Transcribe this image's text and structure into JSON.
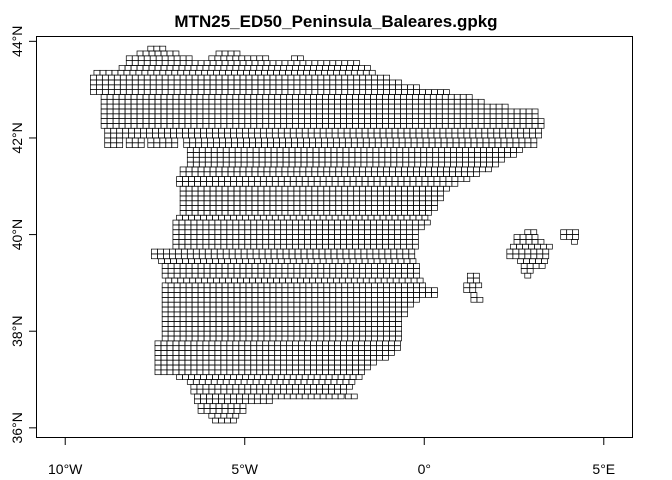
{
  "chart_data": {
    "type": "map-grid",
    "title": "MTN25_ED50_Peninsula_Baleares.gpkg",
    "x_axis": {
      "unit": "longitude",
      "range": [
        -10.8,
        5.8
      ],
      "ticks": [
        {
          "value": -10,
          "label": "10°W"
        },
        {
          "value": -5,
          "label": "5°W"
        },
        {
          "value": 0,
          "label": "0°"
        },
        {
          "value": 5,
          "label": "5°E"
        }
      ]
    },
    "y_axis": {
      "unit": "latitude",
      "range": [
        35.8,
        44.1
      ],
      "ticks": [
        {
          "value": 36,
          "label": "36°N"
        },
        {
          "value": 38,
          "label": "38°N"
        },
        {
          "value": 40,
          "label": "40°N"
        },
        {
          "value": 42,
          "label": "42°N"
        },
        {
          "value": 44,
          "label": "44°N"
        }
      ]
    },
    "cell_size": {
      "lon_deg": 0.1667,
      "lat_deg": 0.1
    },
    "regions": [
      {
        "name": "Iberian Peninsula",
        "rows": [
          {
            "lat": 43.8,
            "spans": [
              [
                -7.7,
                -7.2
              ]
            ]
          },
          {
            "lat": 43.7,
            "spans": [
              [
                -8.0,
                -6.9
              ],
              [
                -5.8,
                -5.1
              ]
            ]
          },
          {
            "lat": 43.6,
            "spans": [
              [
                -8.3,
                -6.4
              ],
              [
                -6.0,
                -4.3
              ],
              [
                -3.7,
                -3.3
              ]
            ]
          },
          {
            "lat": 43.5,
            "spans": [
              [
                -8.3,
                -1.8
              ]
            ]
          },
          {
            "lat": 43.4,
            "spans": [
              [
                -8.5,
                -1.5
              ]
            ]
          },
          {
            "lat": 43.3,
            "spans": [
              [
                -9.2,
                -1.3
              ]
            ]
          },
          {
            "lat": 43.2,
            "spans": [
              [
                -9.3,
                -1.0
              ]
            ]
          },
          {
            "lat": 43.1,
            "spans": [
              [
                -9.3,
                -0.7
              ]
            ]
          },
          {
            "lat": 43.0,
            "spans": [
              [
                -9.3,
                -0.2
              ]
            ]
          },
          {
            "lat": 42.9,
            "spans": [
              [
                -9.3,
                0.7
              ]
            ]
          },
          {
            "lat": 42.8,
            "spans": [
              [
                -9.0,
                1.3
              ]
            ]
          },
          {
            "lat": 42.7,
            "spans": [
              [
                -9.0,
                1.7
              ]
            ]
          },
          {
            "lat": 42.6,
            "spans": [
              [
                -9.0,
                2.3
              ]
            ]
          },
          {
            "lat": 42.5,
            "spans": [
              [
                -9.0,
                3.2
              ]
            ]
          },
          {
            "lat": 42.4,
            "spans": [
              [
                -9.0,
                3.2
              ]
            ]
          },
          {
            "lat": 42.3,
            "spans": [
              [
                -9.0,
                3.3
              ]
            ]
          },
          {
            "lat": 42.2,
            "spans": [
              [
                -9.0,
                3.3
              ]
            ]
          },
          {
            "lat": 42.1,
            "spans": [
              [
                -8.9,
                3.2
              ]
            ]
          },
          {
            "lat": 42.0,
            "spans": [
              [
                -8.9,
                3.2
              ]
            ]
          },
          {
            "lat": 41.9,
            "spans": [
              [
                -8.9,
                -8.4
              ],
              [
                -8.3,
                -7.8
              ],
              [
                -7.7,
                -6.8
              ],
              [
                -6.7,
                3.2
              ]
            ]
          },
          {
            "lat": 41.8,
            "spans": [
              [
                -8.9,
                -8.4
              ],
              [
                -8.3,
                -7.8
              ],
              [
                -7.7,
                -6.8
              ],
              [
                -6.7,
                3.2
              ]
            ]
          },
          {
            "lat": 41.7,
            "spans": [
              [
                -6.6,
                2.8
              ]
            ]
          },
          {
            "lat": 41.6,
            "spans": [
              [
                -6.6,
                2.5
              ]
            ]
          },
          {
            "lat": 41.5,
            "spans": [
              [
                -6.6,
                2.2
              ]
            ]
          },
          {
            "lat": 41.4,
            "spans": [
              [
                -6.6,
                2.0
              ]
            ]
          },
          {
            "lat": 41.3,
            "spans": [
              [
                -6.8,
                1.8
              ]
            ]
          },
          {
            "lat": 41.2,
            "spans": [
              [
                -6.8,
                1.5
              ]
            ]
          },
          {
            "lat": 41.1,
            "spans": [
              [
                -6.9,
                1.2
              ]
            ]
          },
          {
            "lat": 41.0,
            "spans": [
              [
                -6.9,
                0.9
              ]
            ]
          },
          {
            "lat": 40.9,
            "spans": [
              [
                -6.8,
                0.7
              ]
            ]
          },
          {
            "lat": 40.8,
            "spans": [
              [
                -6.8,
                0.6
              ]
            ]
          },
          {
            "lat": 40.7,
            "spans": [
              [
                -6.8,
                0.5
              ]
            ]
          },
          {
            "lat": 40.6,
            "spans": [
              [
                -6.8,
                0.4
              ]
            ]
          },
          {
            "lat": 40.5,
            "spans": [
              [
                -6.8,
                0.3
              ]
            ]
          },
          {
            "lat": 40.4,
            "spans": [
              [
                -6.8,
                0.2
              ]
            ]
          },
          {
            "lat": 40.3,
            "spans": [
              [
                -6.9,
                0.1
              ]
            ]
          },
          {
            "lat": 40.2,
            "spans": [
              [
                -7.0,
                0.1
              ]
            ]
          },
          {
            "lat": 40.1,
            "spans": [
              [
                -7.0,
                0.0
              ]
            ]
          },
          {
            "lat": 40.0,
            "spans": [
              [
                -7.0,
                -0.1
              ]
            ]
          },
          {
            "lat": 39.9,
            "spans": [
              [
                -7.0,
                -0.1
              ]
            ]
          },
          {
            "lat": 39.8,
            "spans": [
              [
                -7.0,
                -0.2
              ]
            ]
          },
          {
            "lat": 39.7,
            "spans": [
              [
                -7.0,
                -0.2
              ]
            ]
          },
          {
            "lat": 39.6,
            "spans": [
              [
                -7.6,
                -0.2
              ]
            ]
          },
          {
            "lat": 39.5,
            "spans": [
              [
                -7.6,
                -0.2
              ]
            ]
          },
          {
            "lat": 39.4,
            "spans": [
              [
                -7.4,
                -0.2
              ]
            ]
          },
          {
            "lat": 39.3,
            "spans": [
              [
                -7.3,
                -0.2
              ]
            ]
          },
          {
            "lat": 39.2,
            "spans": [
              [
                -7.3,
                -0.1
              ]
            ]
          },
          {
            "lat": 39.1,
            "spans": [
              [
                -7.3,
                -0.1
              ]
            ]
          },
          {
            "lat": 39.0,
            "spans": [
              [
                -7.2,
                0.0
              ]
            ]
          },
          {
            "lat": 38.9,
            "spans": [
              [
                -7.3,
                0.0
              ]
            ]
          },
          {
            "lat": 38.8,
            "spans": [
              [
                -7.3,
                0.3
              ]
            ]
          },
          {
            "lat": 38.7,
            "spans": [
              [
                -7.3,
                0.3
              ]
            ]
          },
          {
            "lat": 38.6,
            "spans": [
              [
                -7.3,
                -0.1
              ]
            ]
          },
          {
            "lat": 38.5,
            "spans": [
              [
                -7.3,
                -0.3
              ]
            ]
          },
          {
            "lat": 38.4,
            "spans": [
              [
                -7.3,
                -0.4
              ]
            ]
          },
          {
            "lat": 38.3,
            "spans": [
              [
                -7.3,
                -0.5
              ]
            ]
          },
          {
            "lat": 38.2,
            "spans": [
              [
                -7.3,
                -0.6
              ]
            ]
          },
          {
            "lat": 38.1,
            "spans": [
              [
                -7.3,
                -0.6
              ]
            ]
          },
          {
            "lat": 38.0,
            "spans": [
              [
                -7.3,
                -0.6
              ]
            ]
          },
          {
            "lat": 37.9,
            "spans": [
              [
                -7.3,
                -0.7
              ]
            ]
          },
          {
            "lat": 37.8,
            "spans": [
              [
                -7.3,
                -0.7
              ]
            ]
          },
          {
            "lat": 37.7,
            "spans": [
              [
                -7.5,
                -0.7
              ]
            ]
          },
          {
            "lat": 37.6,
            "spans": [
              [
                -7.5,
                -0.7
              ]
            ]
          },
          {
            "lat": 37.5,
            "spans": [
              [
                -7.5,
                -0.9
              ]
            ]
          },
          {
            "lat": 37.4,
            "spans": [
              [
                -7.5,
                -1.0
              ]
            ]
          },
          {
            "lat": 37.3,
            "spans": [
              [
                -7.5,
                -1.3
              ]
            ]
          },
          {
            "lat": 37.2,
            "spans": [
              [
                -7.5,
                -1.5
              ]
            ]
          },
          {
            "lat": 37.1,
            "spans": [
              [
                -7.5,
                -1.7
              ]
            ]
          },
          {
            "lat": 37.0,
            "spans": [
              [
                -6.9,
                -1.8
              ]
            ]
          },
          {
            "lat": 36.9,
            "spans": [
              [
                -6.6,
                -1.9
              ]
            ]
          },
          {
            "lat": 36.8,
            "spans": [
              [
                -6.5,
                -2.0
              ]
            ]
          },
          {
            "lat": 36.7,
            "spans": [
              [
                -6.5,
                -2.2
              ]
            ]
          },
          {
            "lat": 36.6,
            "spans": [
              [
                -6.4,
                -2.3
              ],
              [
                -2.2,
                -1.9
              ]
            ]
          },
          {
            "lat": 36.5,
            "spans": [
              [
                -6.4,
                -4.2
              ]
            ]
          },
          {
            "lat": 36.4,
            "spans": [
              [
                -6.3,
                -4.9
              ]
            ]
          },
          {
            "lat": 36.3,
            "spans": [
              [
                -6.3,
                -5.0
              ]
            ]
          },
          {
            "lat": 36.2,
            "spans": [
              [
                -6.0,
                -5.1
              ]
            ]
          },
          {
            "lat": 36.1,
            "spans": [
              [
                -5.9,
                -5.3
              ]
            ]
          }
        ]
      },
      {
        "name": "Ibiza / Formentera",
        "rows": [
          {
            "lat": 39.1,
            "spans": [
              [
                1.2,
                1.6
              ]
            ]
          },
          {
            "lat": 39.0,
            "spans": [
              [
                1.2,
                1.6
              ]
            ]
          },
          {
            "lat": 38.9,
            "spans": [
              [
                1.1,
                1.6
              ]
            ]
          },
          {
            "lat": 38.8,
            "spans": [
              [
                1.1,
                1.5
              ]
            ]
          },
          {
            "lat": 38.7,
            "spans": [
              [
                1.3,
                1.5
              ]
            ]
          },
          {
            "lat": 38.6,
            "spans": [
              [
                1.3,
                1.6
              ]
            ]
          }
        ]
      },
      {
        "name": "Mallorca",
        "rows": [
          {
            "lat": 40.0,
            "spans": [
              [
                2.8,
                3.2
              ]
            ]
          },
          {
            "lat": 39.9,
            "spans": [
              [
                2.5,
                3.2
              ]
            ]
          },
          {
            "lat": 39.8,
            "spans": [
              [
                2.5,
                3.3
              ]
            ]
          },
          {
            "lat": 39.7,
            "spans": [
              [
                2.4,
                3.5
              ]
            ]
          },
          {
            "lat": 39.6,
            "spans": [
              [
                2.3,
                3.5
              ]
            ]
          },
          {
            "lat": 39.5,
            "spans": [
              [
                2.3,
                3.5
              ]
            ]
          },
          {
            "lat": 39.4,
            "spans": [
              [
                2.6,
                3.5
              ]
            ]
          },
          {
            "lat": 39.3,
            "spans": [
              [
                2.7,
                3.3
              ]
            ]
          },
          {
            "lat": 39.2,
            "spans": [
              [
                2.7,
                3.0
              ]
            ]
          },
          {
            "lat": 39.1,
            "spans": [
              [
                2.8,
                3.0
              ]
            ]
          }
        ]
      },
      {
        "name": "Menorca",
        "rows": [
          {
            "lat": 40.0,
            "spans": [
              [
                3.8,
                4.3
              ]
            ]
          },
          {
            "lat": 39.9,
            "spans": [
              [
                3.8,
                4.3
              ]
            ]
          },
          {
            "lat": 39.8,
            "spans": [
              [
                4.1,
                4.3
              ]
            ]
          }
        ]
      }
    ]
  }
}
